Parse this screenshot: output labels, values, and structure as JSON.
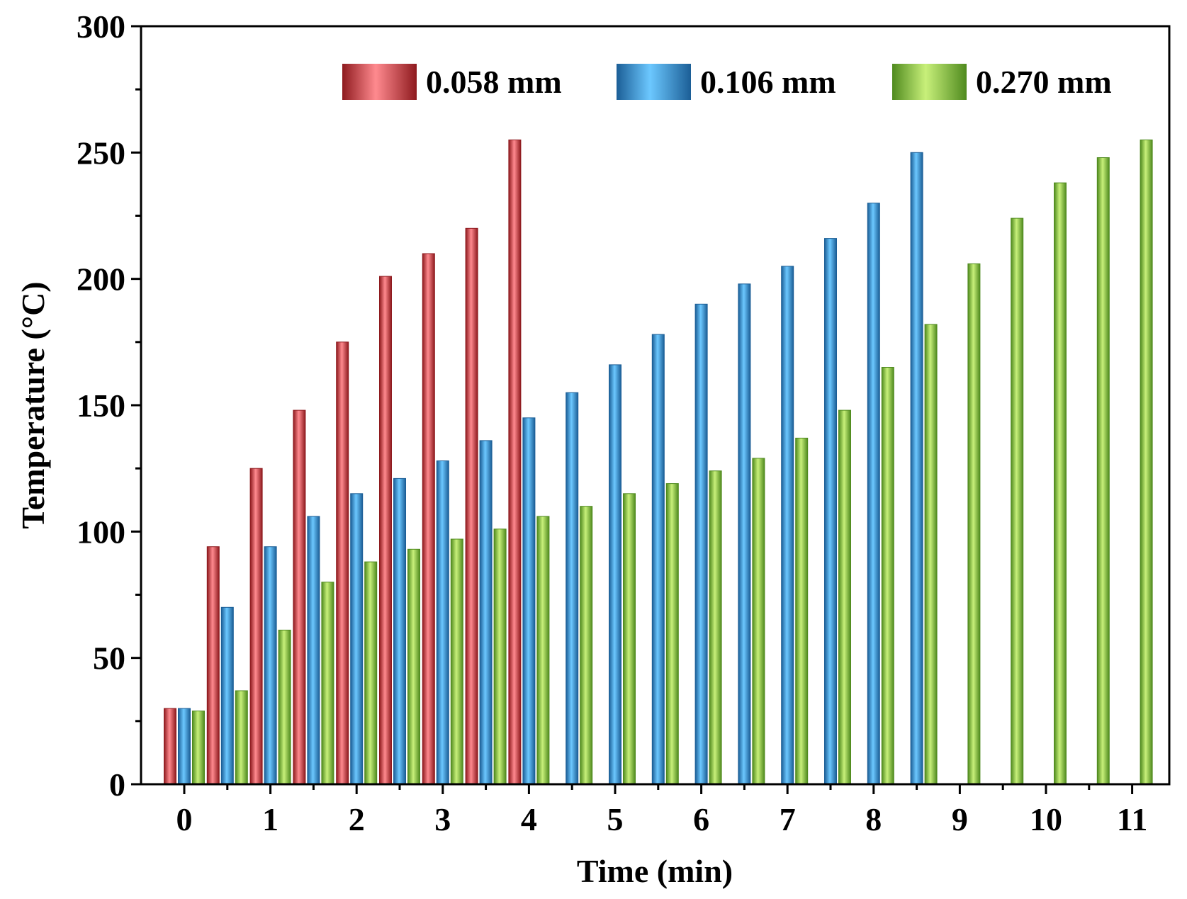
{
  "chart_data": {
    "type": "bar",
    "xlabel": "Time (min)",
    "ylabel": "Temperature (°C)",
    "ylim": [
      0,
      300
    ],
    "yticks": [
      0,
      50,
      100,
      150,
      200,
      250,
      300
    ],
    "xticks": [
      "0",
      "1",
      "2",
      "3",
      "4",
      "5",
      "6",
      "7",
      "8",
      "9",
      "10",
      "11"
    ],
    "legend_position": "top-right",
    "groups_per_minute": 2,
    "group_count": 23,
    "series": [
      {
        "name": "0.058 mm",
        "color_dark": "#8e1a1e",
        "color_mid": "#d94048",
        "color_light": "#ff8a8f",
        "values": [
          30,
          94,
          125,
          148,
          175,
          201,
          210,
          220,
          255
        ]
      },
      {
        "name": "0.106 mm",
        "color_dark": "#1b5e96",
        "color_mid": "#2f8fd6",
        "color_light": "#6cc8ff",
        "values": [
          30,
          70,
          94,
          106,
          115,
          121,
          128,
          136,
          145,
          155,
          166,
          178,
          190,
          198,
          205,
          216,
          230,
          250
        ]
      },
      {
        "name": "0.270 mm",
        "color_dark": "#4f8a1e",
        "color_mid": "#8cc63f",
        "color_light": "#c8f07a",
        "values": [
          29,
          37,
          61,
          80,
          88,
          93,
          97,
          101,
          106,
          110,
          115,
          119,
          124,
          129,
          137,
          148,
          165,
          182,
          206,
          224,
          238,
          248,
          255
        ]
      }
    ]
  }
}
